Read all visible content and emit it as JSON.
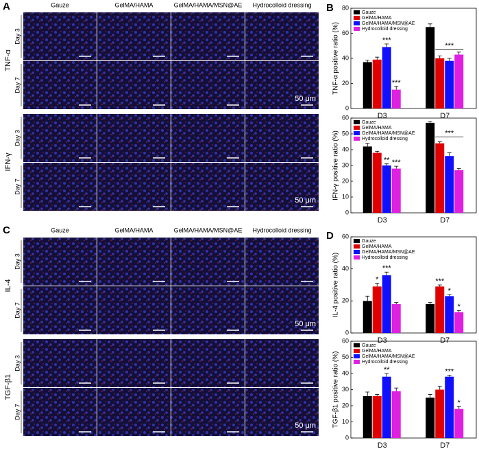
{
  "figure": {
    "panel_labels": [
      "A",
      "B",
      "C",
      "D"
    ],
    "headers_top": [
      "Gauze",
      "GelMA/HAMA",
      "GelMA/HAMA/MSN@AE",
      "Hydrocolloid dressing"
    ],
    "headers_bottom": [
      "Gauze",
      "GelMA/HAMA",
      "GelMA/HAMA/MSN@AE",
      "Hydrocolloid dressing"
    ],
    "blocks": [
      {
        "label": "TNF-α",
        "days": [
          "Day 3",
          "Day 7"
        ],
        "scale": "50 μm"
      },
      {
        "label": "IFN-γ",
        "days": [
          "Day 3",
          "Day 7"
        ],
        "scale": "50 μm"
      },
      {
        "label": "IL-4",
        "days": [
          "Day 3",
          "Day 7"
        ],
        "scale": "50 μm"
      },
      {
        "label": "TGF-β1",
        "days": [
          "Day 3",
          "Day 7"
        ],
        "scale": "50 μm"
      }
    ]
  },
  "chart_data": [
    {
      "type": "bar",
      "ylabel": "TNF-α positive ratio (%)",
      "categories": [
        "D3",
        "D7"
      ],
      "ylim": [
        0,
        80
      ],
      "yticks": [
        0,
        20,
        40,
        60,
        80
      ],
      "bracket_annotations": [
        null,
        "***"
      ],
      "series": [
        {
          "name": "Gauze",
          "color": "#000000",
          "values": [
            37,
            65
          ],
          "errors": [
            1.5,
            2.5
          ],
          "annotations": [
            null,
            null
          ]
        },
        {
          "name": "GelMA/HAMA",
          "color": "#e00000",
          "values": [
            39,
            40
          ],
          "errors": [
            2,
            2
          ],
          "annotations": [
            null,
            null
          ]
        },
        {
          "name": "GelMA/HAMA/MSN@AE",
          "color": "#1010ff",
          "values": [
            49,
            38
          ],
          "errors": [
            2.5,
            2
          ],
          "annotations": [
            "***",
            null
          ]
        },
        {
          "name": "Hydrocolloid dressing",
          "color": "#e020e0",
          "values": [
            15,
            43
          ],
          "errors": [
            2.5,
            2
          ],
          "annotations": [
            "***",
            null
          ]
        }
      ]
    },
    {
      "type": "bar",
      "ylabel": "IFN-γ positive ratio (%)",
      "categories": [
        "D3",
        "D7"
      ],
      "ylim": [
        0,
        60
      ],
      "yticks": [
        0,
        10,
        20,
        30,
        40,
        50,
        60
      ],
      "bracket_annotations": [
        null,
        "***"
      ],
      "series": [
        {
          "name": "Gauze",
          "color": "#000000",
          "values": [
            42,
            57
          ],
          "errors": [
            2,
            1
          ],
          "annotations": [
            null,
            null
          ]
        },
        {
          "name": "GelMA/HAMA",
          "color": "#e00000",
          "values": [
            38,
            44
          ],
          "errors": [
            1,
            1
          ],
          "annotations": [
            null,
            null
          ]
        },
        {
          "name": "GelMA/HAMA/MSN@AE",
          "color": "#1010ff",
          "values": [
            30,
            36
          ],
          "errors": [
            1,
            2
          ],
          "annotations": [
            "**",
            null
          ]
        },
        {
          "name": "Hydrocolloid dressing",
          "color": "#e020e0",
          "values": [
            28,
            27
          ],
          "errors": [
            1.5,
            1
          ],
          "annotations": [
            "***",
            null
          ]
        }
      ]
    },
    {
      "type": "bar",
      "ylabel": "IL-4 positive ratio (%)",
      "categories": [
        "D3",
        "D7"
      ],
      "ylim": [
        0,
        60
      ],
      "yticks": [
        0,
        20,
        40,
        60
      ],
      "bracket_annotations": [
        null,
        null
      ],
      "series": [
        {
          "name": "Gauze",
          "color": "#000000",
          "values": [
            20,
            18
          ],
          "errors": [
            3,
            1
          ],
          "annotations": [
            null,
            null
          ]
        },
        {
          "name": "GelMA/HAMA",
          "color": "#e00000",
          "values": [
            29,
            29
          ],
          "errors": [
            2,
            1
          ],
          "annotations": [
            "*",
            "***"
          ]
        },
        {
          "name": "GelMA/HAMA/MSN@AE",
          "color": "#1010ff",
          "values": [
            36,
            23
          ],
          "errors": [
            2,
            1
          ],
          "annotations": [
            "***",
            "*"
          ]
        },
        {
          "name": "Hydrocolloid dressing",
          "color": "#e020e0",
          "values": [
            18,
            13
          ],
          "errors": [
            1,
            1
          ],
          "annotations": [
            null,
            "*"
          ]
        }
      ]
    },
    {
      "type": "bar",
      "ylabel": "TGF-β1 positive ratio (%)",
      "categories": [
        "D3",
        "D7"
      ],
      "ylim": [
        0,
        60
      ],
      "yticks": [
        0,
        10,
        20,
        30,
        40,
        50,
        60
      ],
      "bracket_annotations": [
        null,
        null
      ],
      "series": [
        {
          "name": "Gauze",
          "color": "#000000",
          "values": [
            26,
            25
          ],
          "errors": [
            2.5,
            2
          ],
          "annotations": [
            null,
            null
          ]
        },
        {
          "name": "GelMA/HAMA",
          "color": "#e00000",
          "values": [
            26,
            30
          ],
          "errors": [
            1,
            2
          ],
          "annotations": [
            null,
            null
          ]
        },
        {
          "name": "GelMA/HAMA/MSN@AE",
          "color": "#1010ff",
          "values": [
            38,
            38
          ],
          "errors": [
            2,
            1
          ],
          "annotations": [
            "**",
            "***"
          ]
        },
        {
          "name": "Hydrocolloid dressing",
          "color": "#e020e0",
          "values": [
            29,
            18
          ],
          "errors": [
            2,
            1.5
          ],
          "annotations": [
            null,
            "*"
          ]
        }
      ]
    }
  ]
}
